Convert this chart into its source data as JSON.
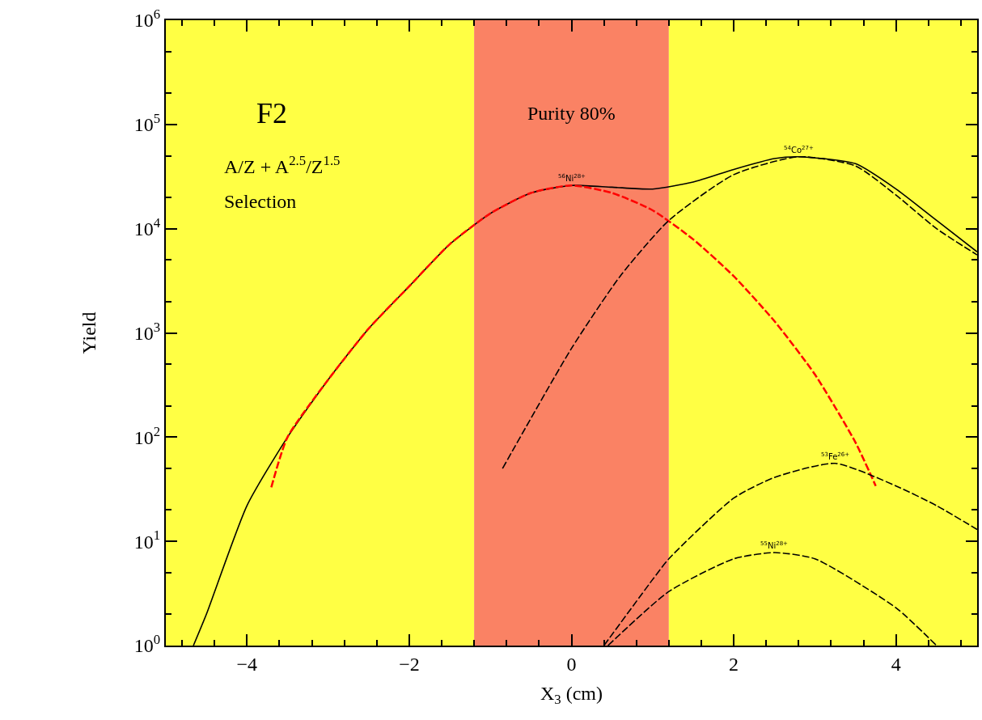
{
  "chart_data": {
    "type": "line",
    "xlabel": "X$_{3}$ (cm)",
    "ylabel": "Yield",
    "log": "y",
    "xlim": [
      -5,
      5
    ],
    "xticks": [
      -4,
      -2,
      0,
      2,
      4
    ],
    "ylim": [
      1,
      1000000
    ],
    "yticks": [
      {
        "value": 1,
        "label": "10$^{0}$"
      },
      {
        "value": 10,
        "label": "10$^{1}$"
      },
      {
        "value": 100,
        "label": "10$^{2}$"
      },
      {
        "value": 1000,
        "label": "10$^{3}$"
      },
      {
        "value": 10000,
        "label": "10$^{4}$"
      },
      {
        "value": 100000,
        "label": "10$^{5}$"
      },
      {
        "value": 1000000,
        "label": "10$^{6}$"
      }
    ],
    "grid": false,
    "legend": false,
    "bands": [
      {
        "axis": "x",
        "from": -5,
        "to": -1.2,
        "label": null,
        "color": "#ffff44"
      },
      {
        "axis": "x",
        "from": -1.2,
        "to": 1.2,
        "label": "Purity 80%",
        "color": "#fa8264"
      },
      {
        "axis": "x",
        "from": 1.2,
        "to": 5,
        "label": null,
        "color": "#ffff44"
      }
    ],
    "annotations": [
      "F2",
      "A/Z + A$^{2.5}$/Z$^{1.5}$",
      "Selection"
    ],
    "series": [
      {
        "color": "#000000",
        "line_style": "solid",
        "x": [
          -4.66,
          -4.5,
          -4,
          -3.5,
          -3,
          -2.5,
          -2,
          -1.5,
          -1,
          -0.5,
          0,
          0.5,
          1,
          1.5,
          2,
          2.5,
          2.8,
          3.5,
          4,
          4.5,
          5
        ],
        "values": [
          1,
          2,
          22,
          100,
          355,
          1100,
          2800,
          7100,
          14000,
          22000,
          26000,
          25000,
          24000,
          28000,
          37000,
          47000,
          49000,
          42000,
          24000,
          12000,
          6000
        ]
      },
      {
        "name": "$^{56}$Ni$^{28+}$",
        "color": "#ff0000",
        "line_style": "dashed",
        "x": [
          -3.7,
          -3.5,
          -3,
          -2.5,
          -2,
          -1.5,
          -1,
          -0.5,
          0,
          0.5,
          1,
          1.5,
          2,
          2.5,
          3,
          3.5,
          3.75
        ],
        "values": [
          33,
          100,
          355,
          1100,
          2800,
          7100,
          14000,
          22000,
          26000,
          22000,
          15000,
          7900,
          3500,
          1300,
          400,
          89,
          34
        ]
      },
      {
        "name": "$^{54}$Co$^{27+}$",
        "color": "#000000",
        "line_style": "dashed",
        "x": [
          -0.85,
          0,
          0.6,
          1.2,
          2,
          2.8,
          3.5,
          4,
          4.5,
          5
        ],
        "values": [
          50,
          710,
          3500,
          12000,
          33000,
          49000,
          40000,
          21000,
          10000,
          5600
        ]
      },
      {
        "name": "$^{53}$Fe$^{26+}$",
        "color": "#000000",
        "line_style": "dashed",
        "x": [
          0.4,
          1,
          1.2,
          2,
          2.5,
          3.25,
          4,
          4.5,
          5
        ],
        "values": [
          1,
          4.3,
          6.8,
          26,
          41,
          56,
          34,
          22,
          13
        ]
      },
      {
        "name": "$^{55}$Ni$^{28+}$",
        "color": "#000000",
        "line_style": "dashed",
        "x": [
          0.45,
          1.2,
          2,
          2.5,
          3,
          4,
          4.5
        ],
        "values": [
          1,
          3.3,
          6.8,
          7.8,
          6.8,
          2.3,
          1
        ]
      }
    ]
  }
}
